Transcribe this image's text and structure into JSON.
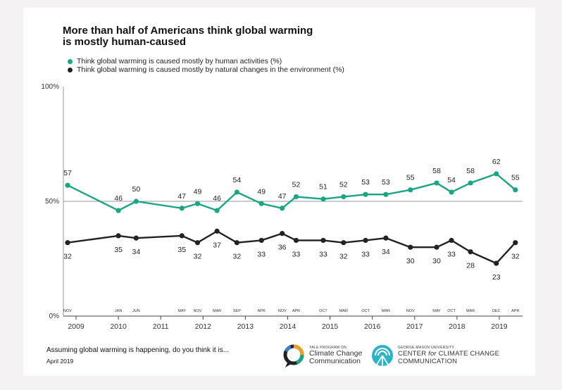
{
  "title_lines": [
    "More than half of Americans think global warming",
    "is mostly human-caused"
  ],
  "question": "Assuming global warming is happening, do you think it is...",
  "date": "April 2019",
  "logos": {
    "yale": {
      "small": "YALE PROGRAM ON",
      "line1": "Climate Change",
      "line2": "Communication"
    },
    "gmu": {
      "small": "GEORGE MASON UNIVERSITY",
      "line1_pre": "CENTER ",
      "line1_em": "for",
      "line1_post": " CLIMATE CHANGE",
      "line2": "COMMUNICATION"
    }
  },
  "colors": {
    "human": "#1aa584",
    "natural": "#222222",
    "grid": "#9a9a9a",
    "axis": "#444444"
  },
  "chart_data": {
    "type": "line",
    "title": "More than half of Americans think global warming is mostly human-caused",
    "ylim": [
      0,
      100
    ],
    "y_ticks": [
      {
        "v": 0,
        "label": "0%"
      },
      {
        "v": 50,
        "label": "50%"
      },
      {
        "v": 100,
        "label": "100%"
      }
    ],
    "gridlines": [
      50
    ],
    "x_range": [
      2008.7,
      2019.55
    ],
    "year_ticks": [
      2009,
      2010,
      2011,
      2012,
      2013,
      2014,
      2015,
      2016,
      2017,
      2018,
      2019
    ],
    "month_ticks": [
      {
        "t": 2008.8,
        "label": "NOV"
      },
      {
        "t": 2010.0,
        "label": "JAN"
      },
      {
        "t": 2010.42,
        "label": "JUN"
      },
      {
        "t": 2011.5,
        "label": "MAY"
      },
      {
        "t": 2011.87,
        "label": "NOV"
      },
      {
        "t": 2012.33,
        "label": "MAR"
      },
      {
        "t": 2012.8,
        "label": "SEP"
      },
      {
        "t": 2013.38,
        "label": "APR"
      },
      {
        "t": 2013.87,
        "label": "NOV"
      },
      {
        "t": 2014.2,
        "label": "APR"
      },
      {
        "t": 2014.84,
        "label": "OCT"
      },
      {
        "t": 2015.32,
        "label": "MAR"
      },
      {
        "t": 2015.84,
        "label": "OCT"
      },
      {
        "t": 2016.32,
        "label": "MAR"
      },
      {
        "t": 2016.9,
        "label": "NOV"
      },
      {
        "t": 2017.52,
        "label": "MAY"
      },
      {
        "t": 2017.87,
        "label": "OCT"
      },
      {
        "t": 2018.32,
        "label": "MAR"
      },
      {
        "t": 2018.93,
        "label": "DEC"
      },
      {
        "t": 2019.38,
        "label": "APR"
      }
    ],
    "series": [
      {
        "name": "Think global warming is caused mostly by human activities (%)",
        "key": "human",
        "values": [
          57,
          46,
          50,
          47,
          49,
          46,
          54,
          49,
          47,
          52,
          51,
          52,
          53,
          53,
          55,
          58,
          54,
          58,
          62,
          55
        ]
      },
      {
        "name": "Think global warming is caused mostly by natural changes in the environment (%)",
        "key": "natural",
        "values": [
          32,
          35,
          34,
          35,
          32,
          37,
          32,
          33,
          36,
          33,
          33,
          32,
          33,
          34,
          30,
          30,
          33,
          28,
          23,
          32
        ]
      }
    ]
  }
}
